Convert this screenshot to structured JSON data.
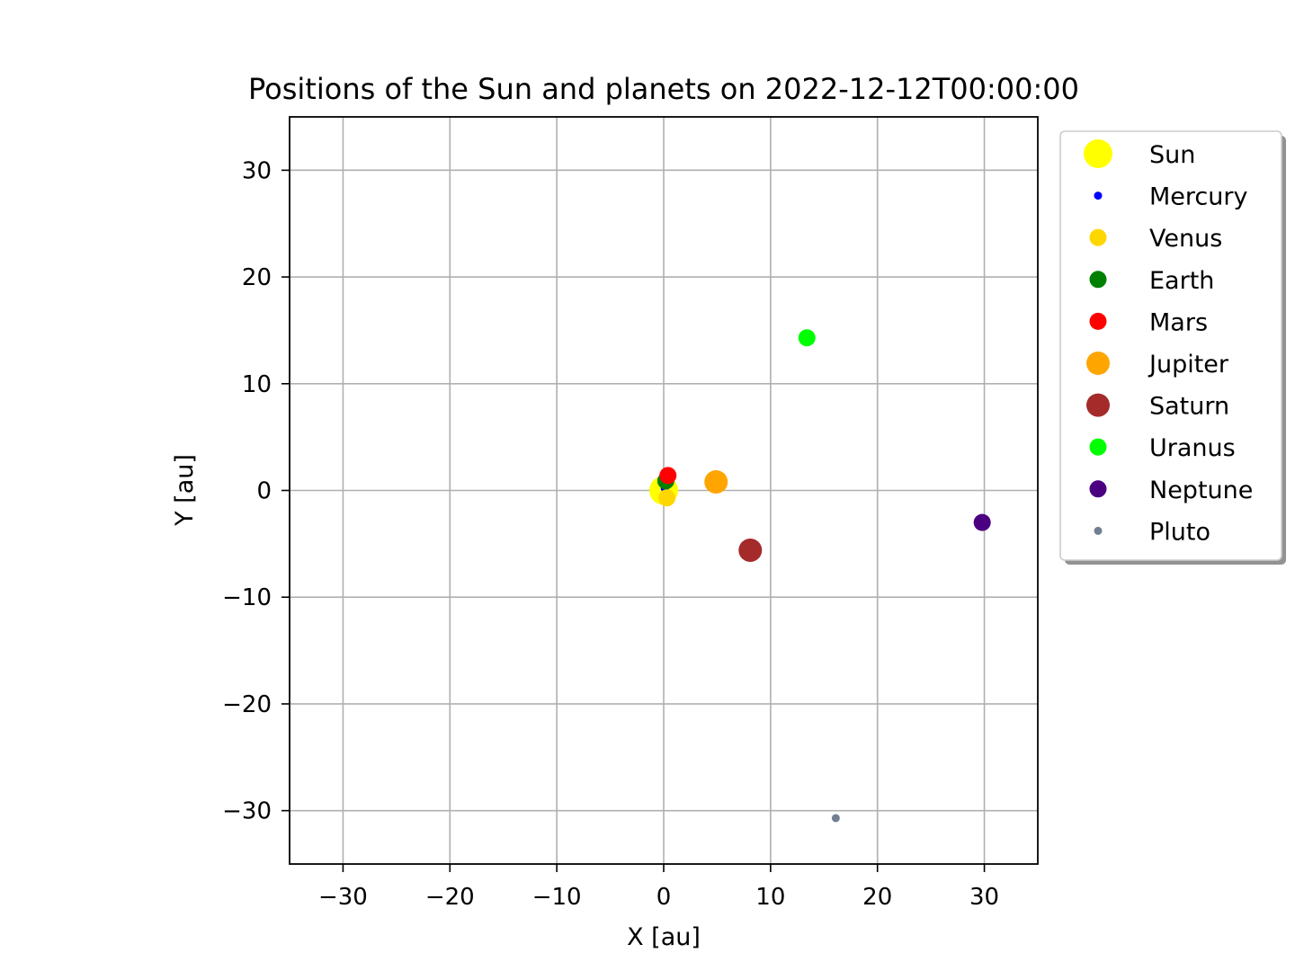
{
  "chart_data": {
    "type": "scatter",
    "title": "Positions of the Sun and planets on 2022-12-12T00:00:00",
    "xlabel": "X [au]",
    "ylabel": "Y [au]",
    "xlim": [
      -35,
      35
    ],
    "ylim": [
      -35,
      35
    ],
    "xticks": [
      -30,
      -20,
      -10,
      0,
      10,
      20,
      30
    ],
    "yticks": [
      -30,
      -20,
      -10,
      0,
      10,
      20,
      30
    ],
    "xtick_labels": [
      "−30",
      "−20",
      "−10",
      "0",
      "10",
      "20",
      "30"
    ],
    "ytick_labels": [
      "−30",
      "−20",
      "−10",
      "0",
      "10",
      "20",
      "30"
    ],
    "grid": true,
    "legend_position": "outside-top-right",
    "series": [
      {
        "name": "Sun",
        "x": 0.0,
        "y": 0.0,
        "color": "#ffff00",
        "marker_size": "large"
      },
      {
        "name": "Mercury",
        "x": 0.1,
        "y": 0.2,
        "color": "#0000ff",
        "marker_size": "tiny"
      },
      {
        "name": "Venus",
        "x": 0.3,
        "y": -0.7,
        "color": "#ffd700",
        "marker_size": "small"
      },
      {
        "name": "Earth",
        "x": 0.2,
        "y": 0.9,
        "color": "#008000",
        "marker_size": "small"
      },
      {
        "name": "Mars",
        "x": 0.4,
        "y": 1.4,
        "color": "#ff0000",
        "marker_size": "small"
      },
      {
        "name": "Jupiter",
        "x": 4.9,
        "y": 0.8,
        "color": "#ffa500",
        "marker_size": "medium"
      },
      {
        "name": "Saturn",
        "x": 8.1,
        "y": -5.6,
        "color": "#a52a2a",
        "marker_size": "medium"
      },
      {
        "name": "Uranus",
        "x": 13.4,
        "y": 14.3,
        "color": "#00ff00",
        "marker_size": "small"
      },
      {
        "name": "Neptune",
        "x": 29.8,
        "y": -3.0,
        "color": "#4b0082",
        "marker_size": "small"
      },
      {
        "name": "Pluto",
        "x": 16.1,
        "y": -30.7,
        "color": "#708090",
        "marker_size": "tiny"
      }
    ]
  }
}
